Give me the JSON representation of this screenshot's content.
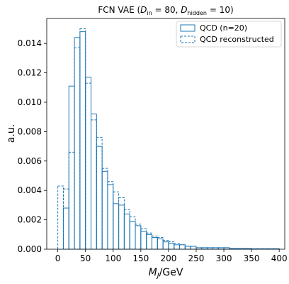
{
  "chart_data": {
    "type": "step-histogram",
    "title_parts": {
      "prefix": "FCN VAE (",
      "d_in_symbol": "D",
      "d_in_sub": "in",
      "d_in_value": " = 80, ",
      "d_hidden_symbol": "D",
      "d_hidden_sub": "hidden",
      "d_hidden_value": " = 10)"
    },
    "xlabel_parts": {
      "symbol": "M",
      "sub": "J",
      "unit": "/GeV"
    },
    "ylabel": "a.u.",
    "xlim": [
      -20,
      410
    ],
    "ylim": [
      0,
      0.0157
    ],
    "xticks": [
      0,
      50,
      100,
      150,
      200,
      250,
      300,
      350,
      400
    ],
    "xtick_labels": [
      "0",
      "50",
      "100",
      "150",
      "200",
      "250",
      "300",
      "350",
      "400"
    ],
    "yticks": [
      0,
      0.002,
      0.004,
      0.006,
      0.008,
      0.01,
      0.012,
      0.014
    ],
    "ytick_labels": [
      "0.000",
      "0.002",
      "0.004",
      "0.006",
      "0.008",
      "0.010",
      "0.012",
      "0.014"
    ],
    "bin_edges": [
      0,
      10,
      20,
      30,
      40,
      50,
      60,
      70,
      80,
      90,
      100,
      110,
      120,
      130,
      140,
      150,
      160,
      170,
      180,
      190,
      200,
      210,
      220,
      230,
      240,
      250,
      260,
      270,
      280,
      290,
      300,
      310,
      320,
      330,
      340,
      350,
      360,
      370,
      380,
      390,
      400
    ],
    "series": [
      {
        "name": "QCD (n=20)",
        "style": "solid",
        "color": "#1f77b4",
        "values": [
          0.0,
          0.0028,
          0.0111,
          0.0144,
          0.0148,
          0.0117,
          0.0092,
          0.007,
          0.0053,
          0.0044,
          0.0031,
          0.003,
          0.0024,
          0.0019,
          0.0016,
          0.0012,
          0.001,
          0.0008,
          0.0007,
          0.0005,
          0.0004,
          0.0003,
          0.0003,
          0.0002,
          0.0002,
          0.0001,
          0.0001,
          0.0001,
          0.0001,
          0.0001,
          0.0001,
          5e-05,
          5e-05,
          5e-05,
          5e-05,
          3e-05,
          3e-05,
          3e-05,
          3e-05,
          3e-05
        ]
      },
      {
        "name": "QCD reconstructed",
        "style": "dashed",
        "color": "#1f77b4",
        "values": [
          0.0043,
          0.0041,
          0.0066,
          0.0137,
          0.015,
          0.0113,
          0.0088,
          0.0076,
          0.0055,
          0.0046,
          0.0039,
          0.0035,
          0.0027,
          0.0022,
          0.0017,
          0.0014,
          0.0011,
          0.0009,
          0.0008,
          0.0006,
          0.0005,
          0.0004,
          0.0003,
          0.0002,
          0.0002,
          0.0001,
          0.0001,
          0.0001,
          0.0001,
          0.0001,
          0.0001,
          5e-05,
          5e-05,
          5e-05,
          5e-05,
          3e-05,
          3e-05,
          3e-05,
          3e-05,
          3e-05
        ]
      }
    ],
    "legend": {
      "position": "top-right"
    }
  }
}
